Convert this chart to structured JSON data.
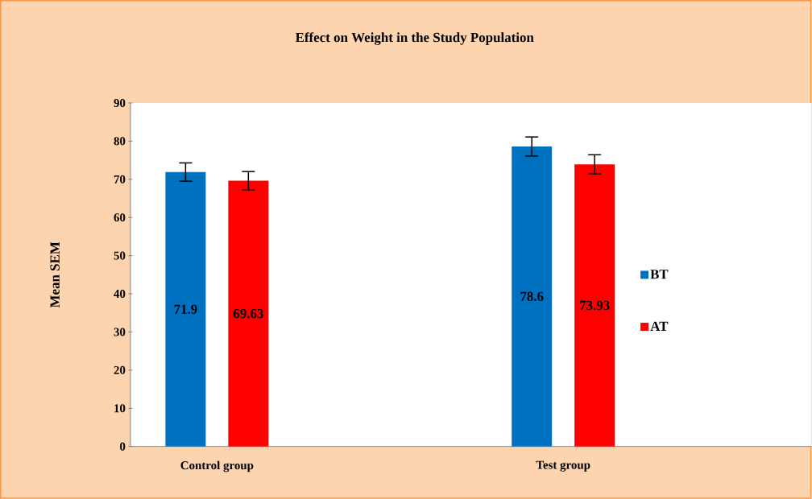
{
  "chart_data": {
    "type": "bar",
    "title": "Effect on Weight in the Study Population",
    "ylabel": "Mean SEM",
    "categories": [
      "Control group",
      null,
      "Test group",
      null
    ],
    "series": [
      {
        "name": "BT",
        "color": "#0070c0",
        "values": [
          71.9,
          null,
          78.6,
          null
        ],
        "errors": [
          2.4,
          null,
          2.5,
          null
        ]
      },
      {
        "name": "AT",
        "color": "#ff0000",
        "values": [
          69.63,
          null,
          73.93,
          null
        ],
        "errors": [
          2.4,
          null,
          2.5,
          null
        ]
      }
    ],
    "ylim": [
      0,
      90
    ],
    "yticks": [
      0,
      10,
      20,
      30,
      40,
      50,
      60,
      70,
      80,
      90
    ],
    "grid": false,
    "legend": "right",
    "data_labels": true
  }
}
